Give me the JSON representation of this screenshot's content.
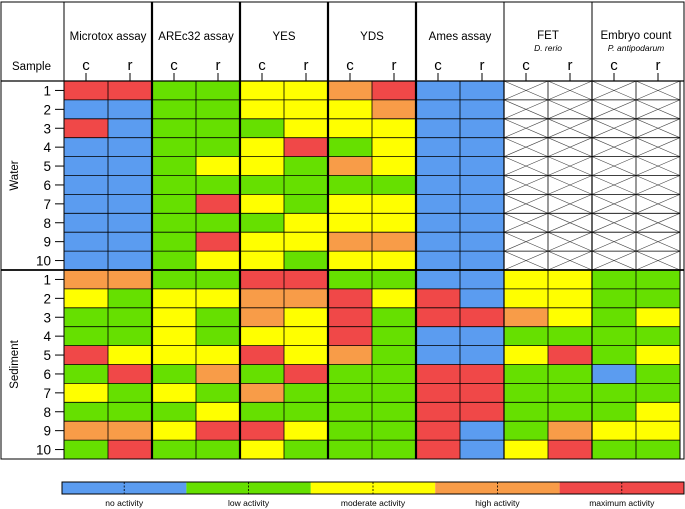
{
  "chart_data": {
    "type": "heatmap",
    "header": {
      "sample_label": "Sample"
    },
    "assays": [
      {
        "name": "Microtox assay",
        "subtitle": "",
        "columns": [
          "c",
          "r"
        ]
      },
      {
        "name": "AREc32 assay",
        "subtitle": "",
        "columns": [
          "c",
          "r"
        ]
      },
      {
        "name": "YES",
        "subtitle": "",
        "columns": [
          "c",
          "r"
        ]
      },
      {
        "name": "YDS",
        "subtitle": "",
        "columns": [
          "c",
          "r"
        ]
      },
      {
        "name": "Ames assay",
        "subtitle": "",
        "columns": [
          "c",
          "r"
        ]
      },
      {
        "name": "FET",
        "subtitle": "D. rerio",
        "columns": [
          "c",
          "r"
        ]
      },
      {
        "name": "Embryo count",
        "subtitle": "P. antipodarum",
        "columns": [
          "c",
          "r"
        ]
      }
    ],
    "groups": [
      {
        "name": "Water",
        "samples": [
          "1",
          "2",
          "3",
          "4",
          "5",
          "6",
          "7",
          "8",
          "9",
          "10"
        ]
      },
      {
        "name": "Sediment",
        "samples": [
          "1",
          "2",
          "3",
          "4",
          "5",
          "6",
          "7",
          "8",
          "9",
          "10"
        ]
      }
    ],
    "legend": [
      {
        "label": "no activity",
        "color": "#5b9cf0"
      },
      {
        "label": "low activity",
        "color": "#66e000"
      },
      {
        "label": "moderate activity",
        "color": "#ffff00"
      },
      {
        "label": "high activity",
        "color": "#f89c48"
      },
      {
        "label": "maximum activity",
        "color": "#f04848"
      }
    ],
    "level_key": {
      "0": "no activity",
      "1": "low activity",
      "2": "moderate activity",
      "3": "high activity",
      "4": "maximum activity",
      "null": "not tested"
    },
    "values": [
      [
        4,
        4,
        1,
        1,
        2,
        2,
        3,
        4,
        0,
        0,
        null,
        null,
        null,
        null
      ],
      [
        0,
        0,
        1,
        1,
        2,
        2,
        2,
        3,
        0,
        0,
        null,
        null,
        null,
        null
      ],
      [
        4,
        0,
        1,
        1,
        1,
        2,
        2,
        2,
        0,
        0,
        null,
        null,
        null,
        null
      ],
      [
        0,
        0,
        1,
        1,
        2,
        4,
        1,
        2,
        0,
        0,
        null,
        null,
        null,
        null
      ],
      [
        0,
        0,
        1,
        2,
        2,
        1,
        3,
        2,
        0,
        0,
        null,
        null,
        null,
        null
      ],
      [
        0,
        0,
        1,
        1,
        1,
        1,
        1,
        1,
        0,
        0,
        null,
        null,
        null,
        null
      ],
      [
        0,
        0,
        1,
        4,
        2,
        1,
        2,
        2,
        0,
        0,
        null,
        null,
        null,
        null
      ],
      [
        0,
        0,
        1,
        1,
        1,
        2,
        2,
        2,
        0,
        0,
        null,
        null,
        null,
        null
      ],
      [
        0,
        0,
        1,
        4,
        2,
        2,
        3,
        3,
        0,
        0,
        null,
        null,
        null,
        null
      ],
      [
        0,
        0,
        1,
        2,
        2,
        1,
        2,
        2,
        0,
        0,
        null,
        null,
        null,
        null
      ],
      [
        3,
        3,
        1,
        1,
        4,
        4,
        1,
        1,
        0,
        0,
        2,
        2,
        1,
        1
      ],
      [
        2,
        1,
        2,
        2,
        3,
        3,
        4,
        2,
        4,
        0,
        2,
        2,
        1,
        1
      ],
      [
        1,
        1,
        2,
        1,
        3,
        2,
        4,
        1,
        4,
        4,
        3,
        2,
        1,
        2
      ],
      [
        1,
        1,
        2,
        1,
        2,
        2,
        4,
        1,
        0,
        0,
        1,
        1,
        1,
        1
      ],
      [
        4,
        2,
        2,
        2,
        4,
        2,
        3,
        1,
        0,
        0,
        2,
        4,
        1,
        2
      ],
      [
        1,
        4,
        1,
        3,
        1,
        4,
        1,
        1,
        4,
        4,
        1,
        1,
        0,
        1
      ],
      [
        2,
        1,
        2,
        1,
        3,
        1,
        1,
        1,
        4,
        4,
        1,
        1,
        1,
        1
      ],
      [
        1,
        1,
        1,
        2,
        1,
        1,
        1,
        1,
        4,
        4,
        1,
        1,
        1,
        2
      ],
      [
        3,
        3,
        2,
        4,
        4,
        2,
        1,
        1,
        4,
        0,
        1,
        3,
        2,
        2
      ],
      [
        1,
        4,
        1,
        1,
        2,
        1,
        1,
        1,
        4,
        0,
        2,
        4,
        1,
        1
      ]
    ]
  }
}
